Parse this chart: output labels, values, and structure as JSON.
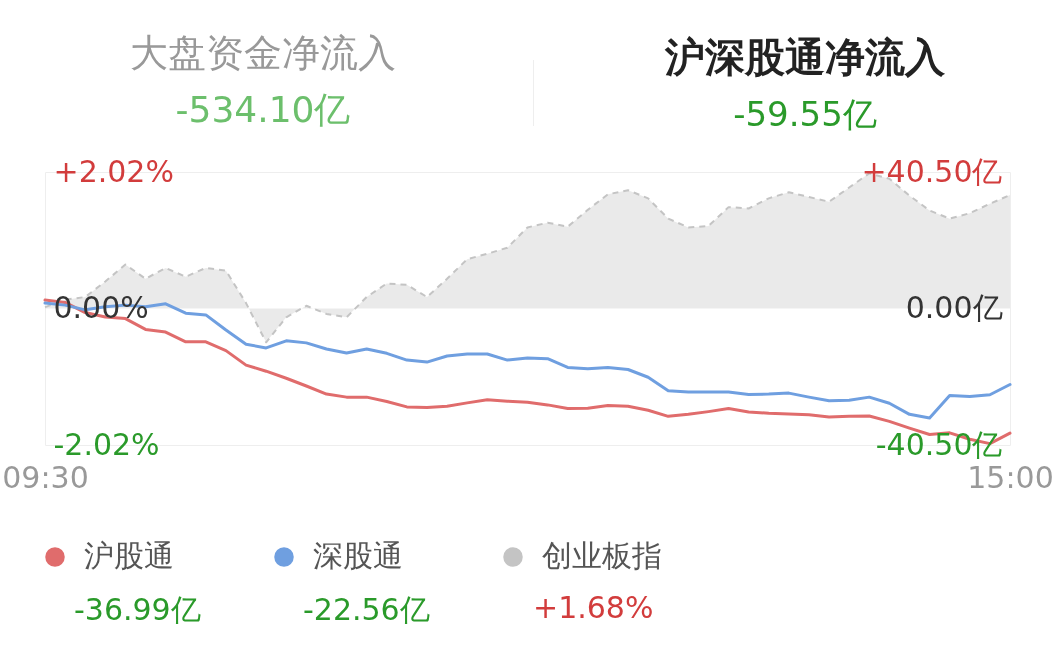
{
  "chart_data": {
    "type": "line",
    "title": "沪深股通净流入",
    "subtitle": "-59.55亿",
    "annotations": [
      "大盘资金净流入",
      "-534.10亿",
      "-36.99亿",
      "-22.56亿",
      "+1.68%"
    ],
    "categories": [
      "09:30",
      null,
      null,
      null,
      null,
      null,
      null,
      null,
      null,
      null,
      null,
      null,
      null,
      null,
      null,
      null,
      null,
      null,
      null,
      null,
      null,
      null,
      null,
      null,
      null,
      null,
      null,
      null,
      null,
      null,
      null,
      null,
      null,
      null,
      null,
      null,
      null,
      null,
      null,
      null,
      null,
      null,
      null,
      null,
      null,
      null,
      null,
      null,
      "15:00"
    ],
    "series": [
      {
        "name": "沪股通",
        "color": "#e06c6c",
        "axis": "y2",
        "values": [
          2.5,
          1.8,
          -1.2,
          -2.5,
          -3.0,
          -6.2,
          -7.0,
          -9.9,
          -9.9,
          -12.5,
          -16.8,
          -18.6,
          -20.7,
          -23.0,
          -25.4,
          -26.3,
          -26.3,
          -27.6,
          -29.2,
          -29.4,
          -29.0,
          -28.0,
          -27.1,
          -27.5,
          -27.8,
          -28.6,
          -29.7,
          -29.6,
          -28.8,
          -29.0,
          -30.2,
          -32.0,
          -31.4,
          -30.6,
          -29.7,
          -30.7,
          -31.1,
          -31.3,
          -31.5,
          -32.2,
          -32.0,
          -31.9,
          -33.5,
          -35.5,
          -37.4,
          -36.9,
          -38.8,
          -40.1,
          -36.99
        ]
      },
      {
        "name": "深股通",
        "color": "#6f9fe0",
        "axis": "y2",
        "values": [
          1.6,
          1.0,
          -0.4,
          0.5,
          1.0,
          0.5,
          1.4,
          -1.4,
          -1.9,
          -6.4,
          -10.6,
          -11.7,
          -9.6,
          -10.2,
          -12.0,
          -13.2,
          -12.0,
          -13.3,
          -15.3,
          -15.9,
          -14.1,
          -13.5,
          -13.5,
          -15.3,
          -14.7,
          -14.9,
          -17.5,
          -17.9,
          -17.5,
          -18.1,
          -20.4,
          -24.4,
          -24.8,
          -24.8,
          -24.8,
          -25.5,
          -25.4,
          -25.1,
          -26.3,
          -27.4,
          -27.2,
          -26.3,
          -28.1,
          -31.4,
          -32.5,
          -25.8,
          -26.1,
          -25.6,
          -22.56
        ]
      },
      {
        "name": "创业板指",
        "color": "#c4c4c4",
        "type": "area",
        "line_style": "dashed",
        "values": [
          0.02,
          0.13,
          0.17,
          0.4,
          0.65,
          0.44,
          0.6,
          0.47,
          0.6,
          0.56,
          0.08,
          -0.5,
          -0.13,
          0.04,
          -0.08,
          -0.13,
          0.17,
          0.37,
          0.35,
          0.17,
          0.44,
          0.73,
          0.81,
          0.9,
          1.2,
          1.27,
          1.21,
          1.46,
          1.69,
          1.75,
          1.63,
          1.33,
          1.2,
          1.22,
          1.5,
          1.48,
          1.63,
          1.72,
          1.65,
          1.58,
          1.79,
          2.0,
          1.92,
          1.67,
          1.45,
          1.33,
          1.41,
          1.55,
          1.68
        ]
      }
    ],
    "ylim": [
      -2.02,
      2.02
    ],
    "yticks": [
      {
        "value": 2.02,
        "label": "+2.02%"
      },
      {
        "value": 0,
        "label": "0.00%"
      },
      {
        "value": -2.02,
        "label": "-2.02%"
      }
    ],
    "y2lim": [
      -40.5,
      40.5
    ],
    "y2ticks": [
      {
        "value": 40.5,
        "label": "+40.50亿"
      },
      {
        "value": 0,
        "label": "0.00亿"
      },
      {
        "value": -40.5,
        "label": "-40.50亿"
      }
    ],
    "legend": "bottom"
  }
}
